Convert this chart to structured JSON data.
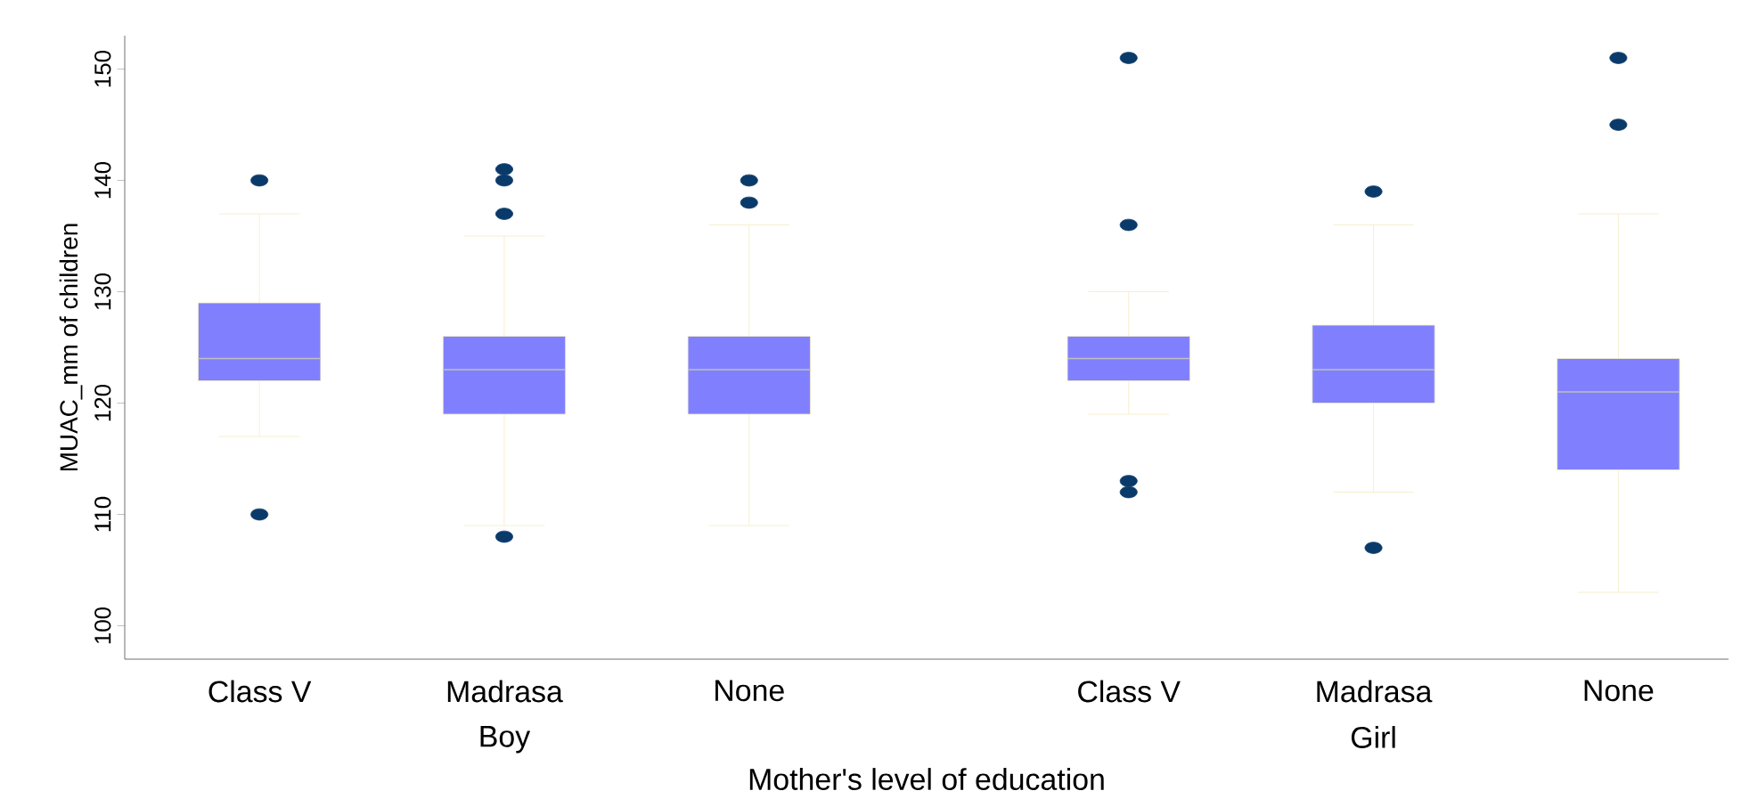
{
  "chart_data": {
    "type": "box",
    "xlabel": "Mother's level of education",
    "ylabel": "MUAC_mm of children",
    "categories": [
      "Class V",
      "Madrasa",
      "None",
      "Class V",
      "Madrasa",
      "None"
    ],
    "boxes": [
      {
        "low": 117,
        "q1": 122,
        "median": 124,
        "q3": 129,
        "high": 137,
        "outliers": [
          140,
          110
        ]
      },
      {
        "low": 109,
        "q1": 119,
        "median": 123,
        "q3": 126,
        "high": 135,
        "outliers": [
          141,
          140,
          137,
          108
        ]
      },
      {
        "low": 109,
        "q1": 119,
        "median": 123,
        "q3": 126,
        "high": 136,
        "outliers": [
          140,
          138
        ]
      },
      {
        "low": 119,
        "q1": 122,
        "median": 124,
        "q3": 126,
        "high": 130,
        "outliers": [
          151,
          136,
          113,
          112
        ]
      },
      {
        "low": 112,
        "q1": 120,
        "median": 123,
        "q3": 127,
        "high": 136,
        "outliers": [
          139,
          107
        ]
      },
      {
        "low": 103,
        "q1": 114,
        "median": 121,
        "q3": 124,
        "high": 137,
        "outliers": [
          151,
          145
        ]
      }
    ],
    "color": "#8080ff",
    "ylim": [
      97,
      153
    ],
    "yticks": [
      100,
      110,
      120,
      130,
      140,
      150
    ],
    "annotations": [
      "Boy",
      "Girl"
    ]
  }
}
